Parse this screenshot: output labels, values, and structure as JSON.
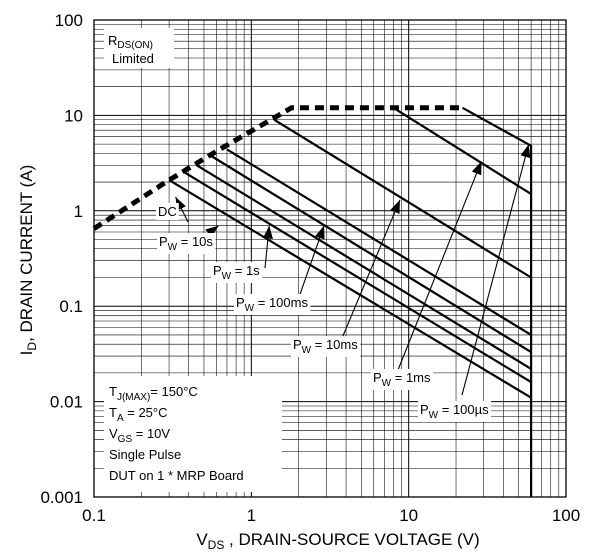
{
  "chart_data": {
    "type": "line",
    "x_scale": "log",
    "y_scale": "log",
    "xlim": [
      0.1,
      100
    ],
    "ylim": [
      0.001,
      100
    ],
    "grid": true,
    "x_ticks": [
      "0.1",
      "1",
      "10",
      "100"
    ],
    "y_ticks": [
      "0.001",
      "0.01",
      "0.1",
      "1",
      "10",
      "100"
    ],
    "xlabel_main": "V",
    "xlabel_sub": "DS",
    "xlabel_rest": " , DRAIN-SOURCE VOLTAGE (V)",
    "ylabel_main": "I",
    "ylabel_sub": "D",
    "ylabel_rest": ", DRAIN CURRENT (A)",
    "rds_label_main": "R",
    "rds_label_sub": "DS(ON)",
    "rds_label_2": "Limited",
    "rds_limit": {
      "x": [
        0.1,
        0.3,
        0.6,
        1.8,
        22
      ],
      "y": [
        0.65,
        2.1,
        4.2,
        12,
        12
      ]
    },
    "series": [
      {
        "name": "DC",
        "label_main": "DC",
        "label_sub": "",
        "label_rest": "",
        "x": [
          0.3,
          60
        ],
        "y": [
          2.1,
          0.011
        ]
      },
      {
        "name": "PW = 10s",
        "label_main": "P",
        "label_sub": "W",
        "label_rest": " = 10s",
        "x": [
          0.38,
          60
        ],
        "y": [
          2.5,
          0.016
        ]
      },
      {
        "name": "PW = 1s",
        "label_main": "P",
        "label_sub": "W",
        "label_rest": " = 1s",
        "x": [
          0.45,
          60
        ],
        "y": [
          3.0,
          0.022
        ]
      },
      {
        "name": "PW = 100ms",
        "label_main": "P",
        "label_sub": "W",
        "label_rest": " = 100ms",
        "x": [
          0.55,
          60
        ],
        "y": [
          3.8,
          0.033
        ]
      },
      {
        "name": "PW = 10ms",
        "label_main": "P",
        "label_sub": "W",
        "label_rest": " = 10ms",
        "x": [
          0.7,
          60
        ],
        "y": [
          4.4,
          0.05
        ]
      },
      {
        "name": "PW = 1ms",
        "label_main": "P",
        "label_sub": "W",
        "label_rest": " = 1ms",
        "x": [
          1.4,
          60
        ],
        "y": [
          9,
          0.2
        ]
      },
      {
        "name": "PW = 100µs",
        "label_main": "P",
        "label_sub": "W",
        "label_rest": " = 100µs",
        "x": [
          8,
          60
        ],
        "y": [
          12,
          1.5
        ]
      }
    ],
    "envelope": {
      "x": [
        22,
        60,
        60
      ],
      "y": [
        12,
        4.8,
        0.001
      ]
    },
    "conditions": [
      {
        "main": "T",
        "sub": "J(MAX)",
        "rest": "= 150°C"
      },
      {
        "main": "T",
        "sub": "A",
        "rest": " = 25°C"
      },
      {
        "main": "V",
        "sub": "GS",
        "rest": " = 10V"
      },
      {
        "main": "Single Pulse",
        "sub": "",
        "rest": ""
      },
      {
        "main": "DUT on 1 * MRP Board",
        "sub": "",
        "rest": ""
      }
    ]
  }
}
